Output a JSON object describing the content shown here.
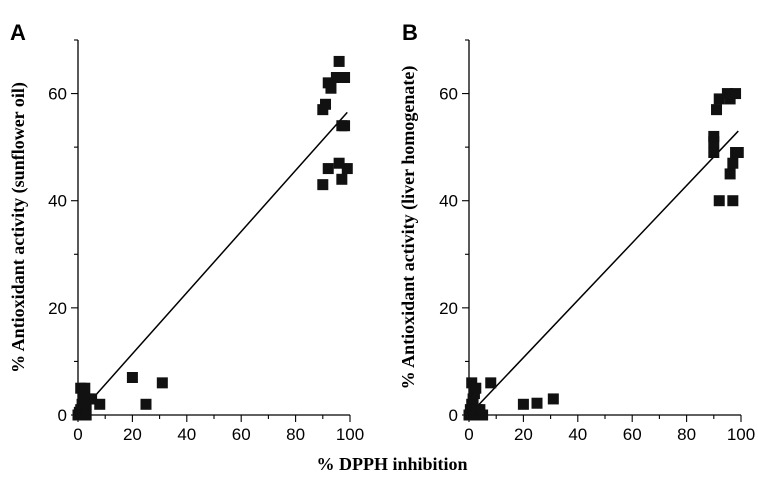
{
  "figure": {
    "shared_xlabel": "% DPPH inhibition"
  },
  "chart_data": [
    {
      "type": "scatter",
      "panel": "A",
      "xlabel": "% DPPH inhibition",
      "ylabel": "% Antioxidant activity (sunflower oil)",
      "xlim": [
        0,
        100
      ],
      "ylim": [
        0,
        70
      ],
      "xticks": [
        0,
        20,
        40,
        60,
        80,
        100
      ],
      "yticks": [
        0,
        20,
        40,
        60
      ],
      "grid": false,
      "series": [
        {
          "marker": "square",
          "color": "#111111",
          "points": [
            [
              0,
              0
            ],
            [
              0.5,
              0.5
            ],
            [
              1,
              1
            ],
            [
              1,
              5
            ],
            [
              1.5,
              2
            ],
            [
              2,
              0
            ],
            [
              2,
              3
            ],
            [
              2.5,
              5
            ],
            [
              3,
              0
            ],
            [
              3,
              2
            ],
            [
              4,
              3
            ],
            [
              5,
              3
            ],
            [
              8,
              2
            ],
            [
              20,
              7
            ],
            [
              25,
              2
            ],
            [
              31,
              6
            ],
            [
              90,
              43
            ],
            [
              90,
              57
            ],
            [
              91,
              58
            ],
            [
              92,
              62
            ],
            [
              92,
              46
            ],
            [
              93,
              61
            ],
            [
              95,
              63
            ],
            [
              96,
              66
            ],
            [
              96,
              47
            ],
            [
              97,
              44
            ],
            [
              97,
              54
            ],
            [
              98,
              63
            ],
            [
              98,
              54
            ],
            [
              99,
              46
            ]
          ]
        }
      ],
      "fit_line": {
        "x": [
          0,
          99
        ],
        "y": [
          0,
          56.5
        ]
      }
    },
    {
      "type": "scatter",
      "panel": "B",
      "xlabel": "% DPPH inhibition",
      "ylabel": "% Antioxidant activity (liver homogenate)",
      "xlim": [
        0,
        100
      ],
      "ylim": [
        0,
        70
      ],
      "xticks": [
        0,
        20,
        40,
        60,
        80,
        100
      ],
      "yticks": [
        0,
        20,
        40,
        60
      ],
      "grid": false,
      "series": [
        {
          "marker": "square",
          "color": "#111111",
          "points": [
            [
              0,
              0
            ],
            [
              0.5,
              1
            ],
            [
              1,
              2
            ],
            [
              1,
              6
            ],
            [
              1.5,
              3
            ],
            [
              2,
              0
            ],
            [
              2,
              4
            ],
            [
              2.5,
              5
            ],
            [
              3,
              0
            ],
            [
              3,
              1
            ],
            [
              4,
              1
            ],
            [
              5,
              0
            ],
            [
              8,
              6
            ],
            [
              20,
              2
            ],
            [
              25,
              2.2
            ],
            [
              31,
              3
            ],
            [
              90,
              49
            ],
            [
              90,
              51
            ],
            [
              90,
              52
            ],
            [
              91,
              57
            ],
            [
              92,
              40
            ],
            [
              92,
              59
            ],
            [
              95,
              60
            ],
            [
              96,
              59
            ],
            [
              96,
              45
            ],
            [
              97,
              40
            ],
            [
              97,
              47
            ],
            [
              98,
              60
            ],
            [
              98,
              49
            ],
            [
              99,
              49
            ]
          ]
        }
      ],
      "fit_line": {
        "x": [
          0,
          99
        ],
        "y": [
          0,
          53
        ]
      }
    }
  ]
}
